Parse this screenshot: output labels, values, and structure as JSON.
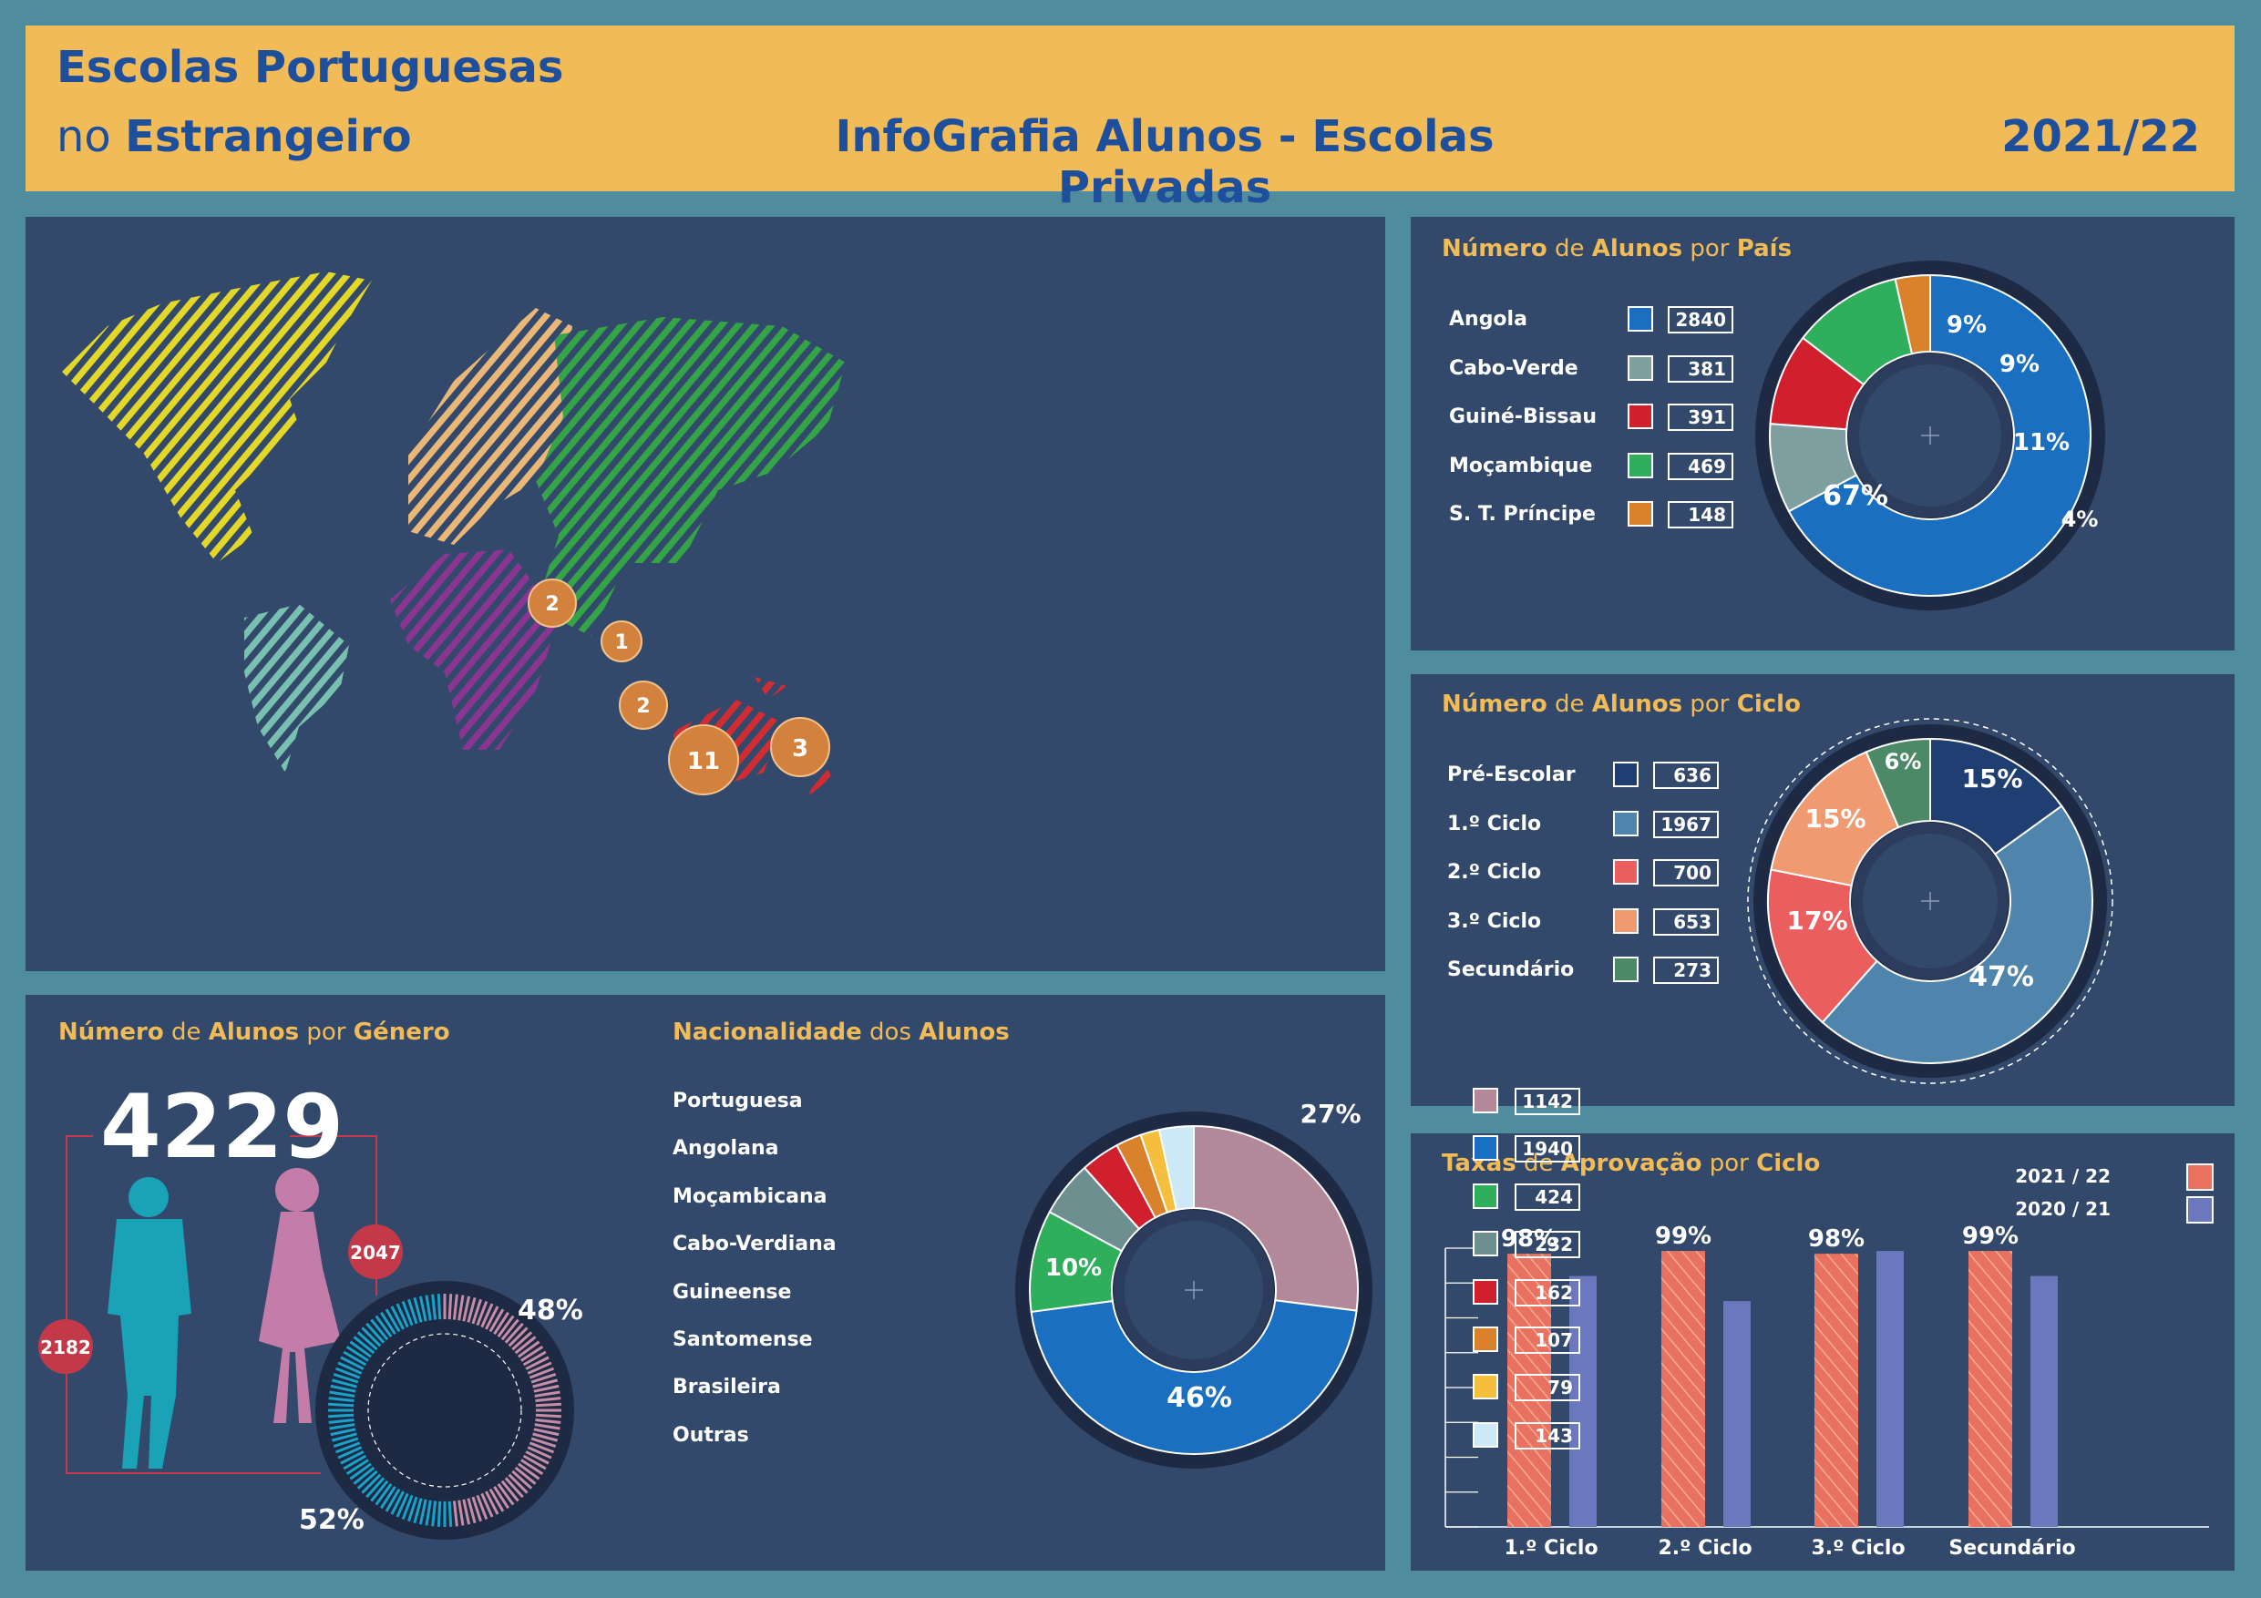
{
  "header": {
    "title_line1": "Escolas Portuguesas",
    "title_line2_prefix": "no",
    "title_line2_bold": "Estrangeiro",
    "center_title": "InfoGrafia Alunos - Escolas Privadas",
    "year": "2021/22"
  },
  "colors": {
    "background": "#4e8c9e",
    "panel": "#33496b",
    "header": "#f1bb57",
    "title": "#1d4f9c",
    "accent": "#f1bb57"
  },
  "map": {
    "markers": [
      "2",
      "1",
      "2",
      "11",
      "3"
    ]
  },
  "pais": {
    "title": {
      "w1": "Número",
      "w2": "de",
      "w3": "Alunos",
      "w4": "por",
      "w5": "País"
    },
    "items": [
      {
        "label": "Angola",
        "value": "2840",
        "color": "#1b6fc0"
      },
      {
        "label": "Cabo-Verde",
        "value": "381",
        "color": "#7f9ea0"
      },
      {
        "label": "Guiné-Bissau",
        "value": "391",
        "color": "#d0202e"
      },
      {
        "label": "Moçambique",
        "value": "469",
        "color": "#2fae5b"
      },
      {
        "label": "S. T. Príncipe",
        "value": "148",
        "color": "#d9822b"
      }
    ],
    "pct_labels": [
      "9%",
      "9%",
      "11%",
      "4%",
      "67%"
    ]
  },
  "ciclo": {
    "title": {
      "w1": "Número",
      "w2": "de",
      "w3": "Alunos",
      "w4": "por",
      "w5": "Ciclo"
    },
    "items": [
      {
        "label": "Pré-Escolar",
        "value": "636",
        "color": "#1f3e72"
      },
      {
        "label": "1.º Ciclo",
        "value": "1967",
        "color": "#4f85ad"
      },
      {
        "label": "2.º Ciclo",
        "value": "700",
        "color": "#ea5e5e"
      },
      {
        "label": "3.º Ciclo",
        "value": "653",
        "color": "#f09a72"
      },
      {
        "label": "Secundário",
        "value": "273",
        "color": "#4c8a67"
      }
    ],
    "pct_labels": [
      "15%",
      "47%",
      "17%",
      "15%",
      "6%"
    ]
  },
  "genero": {
    "title": {
      "w1": "Número",
      "w2": "de",
      "w3": "Alunos",
      "w4": "por",
      "w5": "Género"
    },
    "total": "4229",
    "male": "2182",
    "female": "2047",
    "pct_female": "48%",
    "pct_male": "52%"
  },
  "nacionalidade": {
    "title": {
      "w1": "Nacionalidade",
      "w2": "dos",
      "w3": "Alunos"
    },
    "items": [
      {
        "label": "Portuguesa",
        "value": "1142",
        "color": "#b3899a"
      },
      {
        "label": "Angolana",
        "value": "1940",
        "color": "#1b6fc0"
      },
      {
        "label": "Moçambicana",
        "value": "424",
        "color": "#2fae5b"
      },
      {
        "label": "Cabo-Verdiana",
        "value": "232",
        "color": "#6e8f90"
      },
      {
        "label": "Guineense",
        "value": "162",
        "color": "#d0202e"
      },
      {
        "label": "Santomense",
        "value": "107",
        "color": "#d9822b"
      },
      {
        "label": "Brasileira",
        "value": "79",
        "color": "#f5be3c"
      },
      {
        "label": "Outras",
        "value": "143",
        "color": "#cde8f6"
      }
    ],
    "pct_labels": [
      "27%",
      "46%",
      "10%"
    ]
  },
  "taxas": {
    "title": {
      "w1": "Taxas",
      "w2": "de",
      "w3": "Aprovação",
      "w4": "por",
      "w5": "Ciclo"
    },
    "legend": [
      {
        "label": "2021 / 22",
        "color": "#e8725f"
      },
      {
        "label": "2020 / 21",
        "color": "#6c78be"
      }
    ]
  },
  "chart_data": [
    {
      "type": "pie",
      "title": "Número de Alunos por País",
      "categories": [
        "Angola",
        "Cabo-Verde",
        "Guiné-Bissau",
        "Moçambique",
        "S. T. Príncipe"
      ],
      "values": [
        2840,
        381,
        391,
        469,
        148
      ],
      "percent_labels": [
        67,
        9,
        9,
        11,
        4
      ]
    },
    {
      "type": "pie",
      "title": "Número de Alunos por Ciclo",
      "categories": [
        "Pré-Escolar",
        "1.º Ciclo",
        "2.º Ciclo",
        "3.º Ciclo",
        "Secundário"
      ],
      "values": [
        636,
        1967,
        700,
        653,
        273
      ],
      "percent_labels": [
        15,
        47,
        17,
        15,
        6
      ]
    },
    {
      "type": "pie",
      "title": "Número de Alunos por Género",
      "categories": [
        "Masculino",
        "Feminino"
      ],
      "values": [
        2182,
        2047
      ],
      "percent_labels": [
        52,
        48
      ],
      "total": 4229
    },
    {
      "type": "pie",
      "title": "Nacionalidade dos Alunos",
      "categories": [
        "Portuguesa",
        "Angolana",
        "Moçambicana",
        "Cabo-Verdiana",
        "Guineense",
        "Santomense",
        "Brasileira",
        "Outras"
      ],
      "values": [
        1142,
        1940,
        424,
        232,
        162,
        107,
        79,
        143
      ],
      "percent_labels": [
        27,
        46,
        10
      ]
    },
    {
      "type": "bar",
      "title": "Taxas de Aprovação por Ciclo",
      "categories": [
        "1.º Ciclo",
        "2.º Ciclo",
        "3.º Ciclo",
        "Secundário"
      ],
      "series": [
        {
          "name": "2021 / 22",
          "values": [
            98,
            99,
            98,
            99
          ],
          "labels": [
            "98%",
            "99%",
            "98%",
            "99%"
          ]
        },
        {
          "name": "2020 / 21",
          "values": [
            90,
            81,
            99,
            90
          ]
        }
      ],
      "ylim": [
        0,
        100
      ]
    }
  ]
}
